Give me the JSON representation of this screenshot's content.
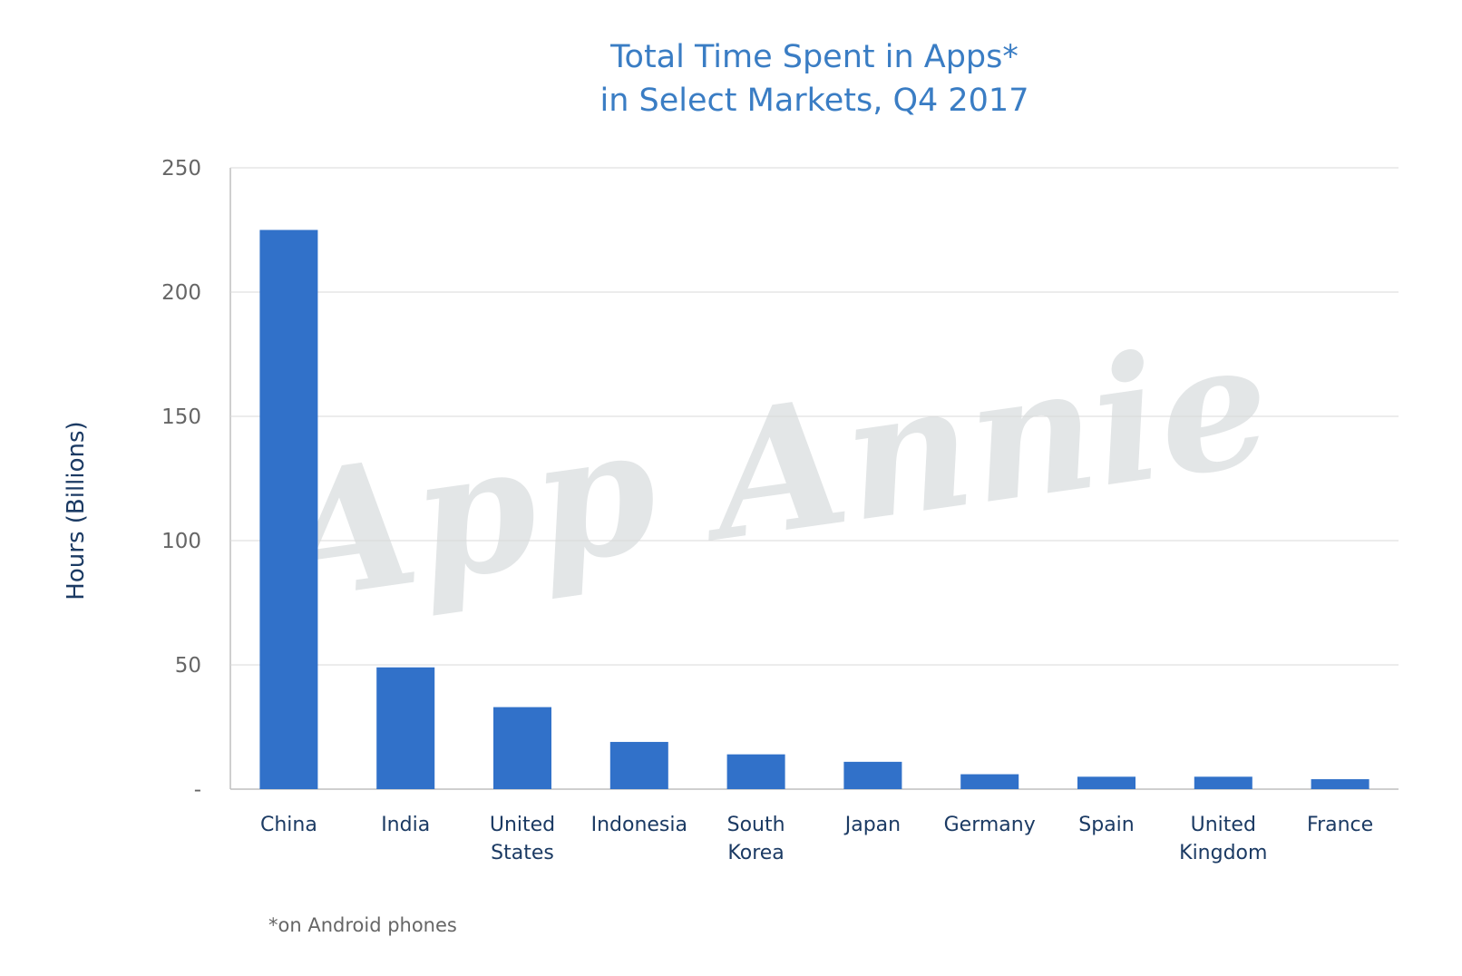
{
  "chart_data": {
    "type": "bar",
    "title": [
      "Total Time Spent in Apps*",
      "in Select Markets, Q4 2017"
    ],
    "ylabel": "Hours (Billions)",
    "xlabel": "",
    "categories": [
      "China",
      "India",
      "United States",
      "Indonesia",
      "South Korea",
      "Japan",
      "Germany",
      "Spain",
      "United Kingdom",
      "France"
    ],
    "category_lines": [
      [
        "China"
      ],
      [
        "India"
      ],
      [
        "United",
        "States"
      ],
      [
        "Indonesia"
      ],
      [
        "South",
        "Korea"
      ],
      [
        "Japan"
      ],
      [
        "Germany"
      ],
      [
        "Spain"
      ],
      [
        "United",
        "Kingdom"
      ],
      [
        "France"
      ]
    ],
    "values": [
      225,
      49,
      33,
      19,
      14,
      11,
      6,
      5,
      5,
      4
    ],
    "ylim": [
      0,
      250
    ],
    "yticks": [
      0,
      50,
      100,
      150,
      200,
      250
    ],
    "ytick_labels": [
      "-",
      "50",
      "100",
      "150",
      "200",
      "250"
    ],
    "grid": true,
    "bar_color": "#3171c9",
    "title_color": "#3a7dc4",
    "label_color": "#1b3a63",
    "footnote": "*on Android phones",
    "watermark": "App Annie"
  }
}
